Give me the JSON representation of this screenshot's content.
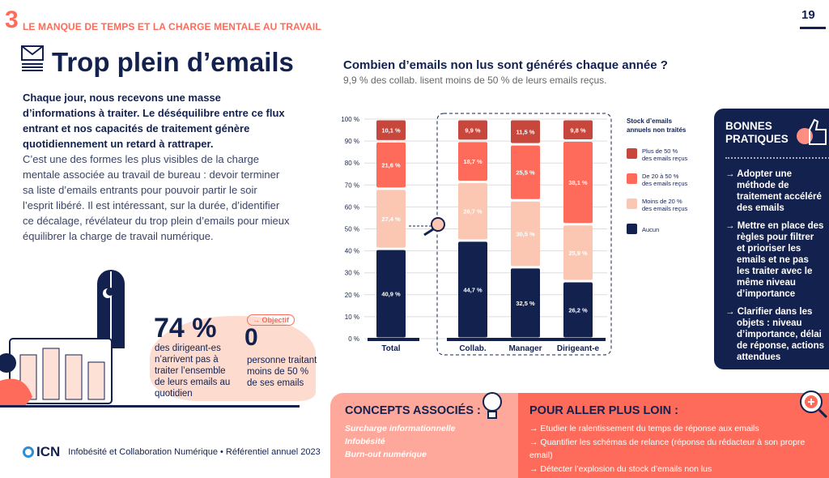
{
  "header": {
    "section_number": "3",
    "section_title": "LE MANQUE DE TEMPS ET LA CHARGE MENTALE AU TRAVAIL",
    "page_number": "19"
  },
  "page": {
    "title": "Trop plein d’emails",
    "lead": "Chaque jour, nous recevons une masse d’informations à traiter. Le déséquilibre entre ce flux entrant et nos capacités de traitement génère quotidiennement un retard à rattraper.",
    "body": "C’est une des formes les plus visibles de la charge mentale associée au travail de bureau : devoir terminer sa liste d’emails entrants pour pouvoir partir le soir l’esprit libéré. Il est intéressant, sur la durée, d’identifier ce décalage, révélateur du trop plein d’emails pour mieux équilibrer la charge de travail numérique."
  },
  "stats": {
    "big_value": "74 %",
    "big_text": "des dirigeant-es n’arrivent pas à traiter l’ensemble de leurs emails au quotidien",
    "objective_label": "→ Objectif",
    "objective_value": "0",
    "objective_text": "personne traitant moins de 50 % de ses emails"
  },
  "footer": {
    "logo": "ICN",
    "text": "Infobésité et Collaboration Numérique • Référentiel annuel 2023"
  },
  "chart_data": {
    "type": "bar",
    "stacked": true,
    "title": "Combien d’emails non lus sont générés chaque année ?",
    "subtitle": "9,9 % des collab. lisent moins de 50 % de leurs emails reçus.",
    "categories": [
      "Total",
      "Collab.",
      "Manager",
      "Dirigeant-e"
    ],
    "ylim": [
      0,
      100
    ],
    "yticks": [
      "0 %",
      "10 %",
      "20 %",
      "30 %",
      "40 %",
      "50 %",
      "60 %",
      "70 %",
      "80 %",
      "90 %",
      "100 %"
    ],
    "grid": true,
    "legend_title": "Stock d’emails annuels non traités",
    "legend_position": "right",
    "series": [
      {
        "name": "Aucun",
        "color": "#13214f",
        "values": [
          40.9,
          44.7,
          32.5,
          26.2
        ],
        "labels": [
          "40,9 %",
          "44,7 %",
          "32,5 %",
          "26,2 %"
        ]
      },
      {
        "name": "Moins de 20 % des emails reçus",
        "color": "#fbc7b3",
        "values": [
          27.4,
          26.7,
          30.5,
          25.9
        ],
        "labels": [
          "27,4 %",
          "26,7 %",
          "30,5 %",
          "25,9 %"
        ]
      },
      {
        "name": "De 20 à 50 % des emails reçus",
        "color": "#fe6b5a",
        "values": [
          21.6,
          18.7,
          25.5,
          38.1
        ],
        "labels": [
          "21,6 %",
          "18,7 %",
          "25,5 %",
          "38,1 %"
        ]
      },
      {
        "name": "Plus de 50 % des emails reçus",
        "color": "#c8473c",
        "values": [
          10.1,
          9.9,
          11.5,
          9.8
        ],
        "labels": [
          "10,1 %",
          "9,9 %",
          "11,5 %",
          "9,8 %"
        ]
      }
    ]
  },
  "bonnes_pratiques": {
    "title": "BONNES PRATIQUES",
    "items": [
      "→ Adopter une méthode de traitement accéléré des emails",
      "→ Mettre en place des règles pour filtrer et prioriser les emails et ne pas les traiter avec le même niveau d’importance",
      "→ Clarifier dans les objets : niveau d’importance, délai de réponse, actions attendues"
    ]
  },
  "concepts": {
    "title": "CONCEPTS ASSOCIÉS :",
    "items": [
      "Surcharge informationnelle",
      "Infobésité",
      "Burn-out numérique"
    ]
  },
  "plus_loin": {
    "title": "POUR ALLER PLUS LOIN :",
    "items": [
      "→ Etudier le ralentissement du temps de réponse aux emails",
      "→ Quantifier les schémas de relance (réponse du rédacteur à son propre email)",
      "→ Détecter l’explosion du stock d’emails non lus"
    ]
  }
}
